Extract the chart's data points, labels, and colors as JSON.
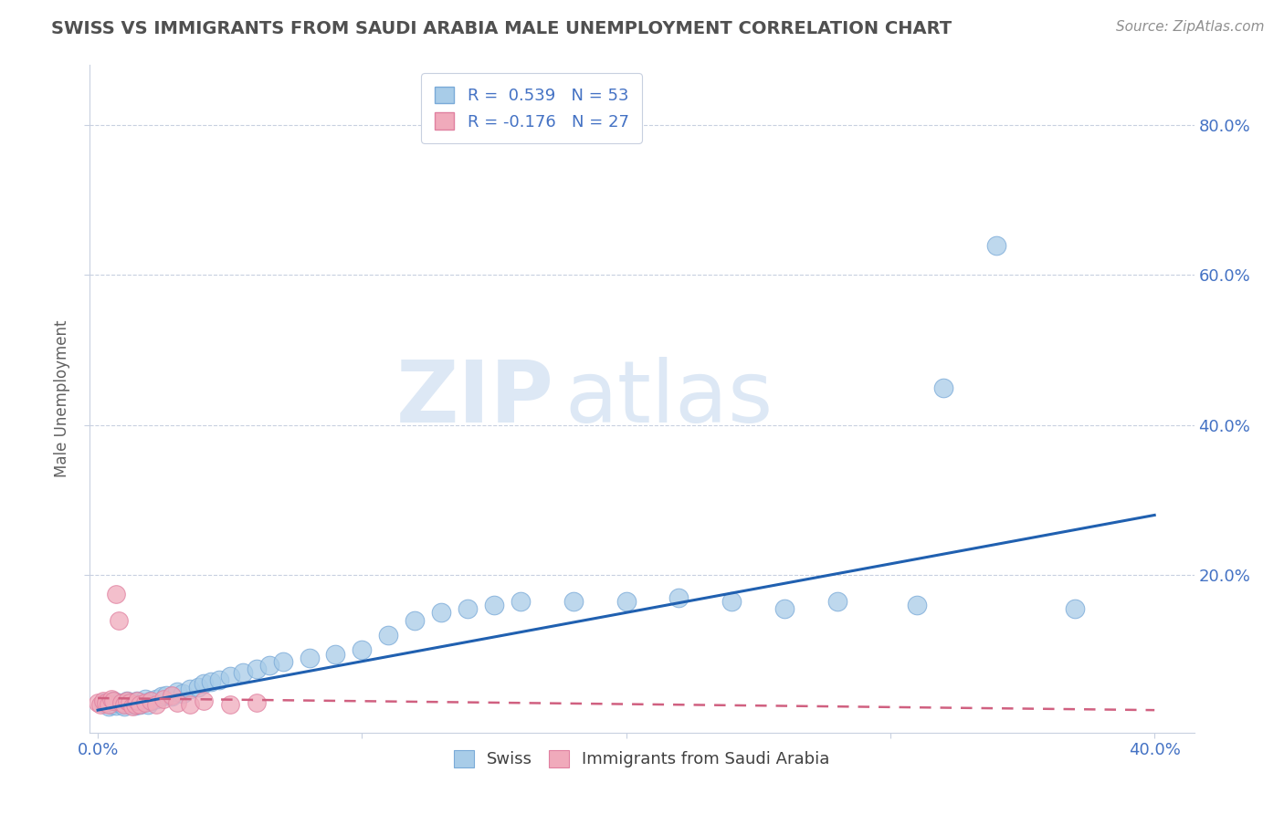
{
  "title": "SWISS VS IMMIGRANTS FROM SAUDI ARABIA MALE UNEMPLOYMENT CORRELATION CHART",
  "source": "Source: ZipAtlas.com",
  "ylabel": "Male Unemployment",
  "xlim": [
    -0.003,
    0.415
  ],
  "ylim": [
    -0.01,
    0.88
  ],
  "yticks": [
    0.2,
    0.4,
    0.6,
    0.8
  ],
  "ytick_labels": [
    "20.0%",
    "40.0%",
    "60.0%",
    "80.0%"
  ],
  "xticks": [
    0.0,
    0.1,
    0.2,
    0.3,
    0.4
  ],
  "xtick_labels": [
    "0.0%",
    "",
    "",
    "",
    "40.0%"
  ],
  "swiss_color": "#a8cce8",
  "immigrants_color": "#f0aabb",
  "trend_swiss_color": "#2060b0",
  "trend_immigrants_color": "#d06080",
  "legend_r1": "R =  0.539   N = 53",
  "legend_r2": "R = -0.176   N = 27",
  "swiss_x": [
    0.002,
    0.004,
    0.005,
    0.006,
    0.007,
    0.008,
    0.009,
    0.01,
    0.011,
    0.012,
    0.013,
    0.014,
    0.015,
    0.016,
    0.017,
    0.018,
    0.019,
    0.02,
    0.022,
    0.024,
    0.026,
    0.028,
    0.03,
    0.032,
    0.035,
    0.038,
    0.04,
    0.043,
    0.046,
    0.05,
    0.055,
    0.06,
    0.065,
    0.07,
    0.08,
    0.09,
    0.1,
    0.11,
    0.12,
    0.13,
    0.14,
    0.15,
    0.16,
    0.18,
    0.2,
    0.22,
    0.24,
    0.26,
    0.28,
    0.31,
    0.32,
    0.34,
    0.37
  ],
  "swiss_y": [
    0.03,
    0.025,
    0.028,
    0.032,
    0.026,
    0.03,
    0.028,
    0.025,
    0.032,
    0.028,
    0.03,
    0.026,
    0.032,
    0.028,
    0.03,
    0.035,
    0.028,
    0.032,
    0.035,
    0.038,
    0.04,
    0.038,
    0.045,
    0.042,
    0.048,
    0.05,
    0.055,
    0.058,
    0.06,
    0.065,
    0.07,
    0.075,
    0.08,
    0.085,
    0.09,
    0.095,
    0.1,
    0.12,
    0.14,
    0.15,
    0.155,
    0.16,
    0.165,
    0.165,
    0.165,
    0.17,
    0.165,
    0.155,
    0.165,
    0.16,
    0.45,
    0.64,
    0.155
  ],
  "immigrants_x": [
    0.0,
    0.001,
    0.002,
    0.003,
    0.004,
    0.005,
    0.006,
    0.007,
    0.008,
    0.009,
    0.01,
    0.011,
    0.012,
    0.013,
    0.014,
    0.015,
    0.016,
    0.018,
    0.02,
    0.022,
    0.025,
    0.028,
    0.03,
    0.035,
    0.04,
    0.05,
    0.06
  ],
  "immigrants_y": [
    0.03,
    0.028,
    0.032,
    0.03,
    0.028,
    0.035,
    0.032,
    0.175,
    0.14,
    0.03,
    0.028,
    0.032,
    0.03,
    0.025,
    0.028,
    0.032,
    0.028,
    0.03,
    0.032,
    0.028,
    0.035,
    0.04,
    0.03,
    0.028,
    0.032,
    0.028,
    0.03
  ],
  "watermark_zip": "ZIP",
  "watermark_atlas": "atlas",
  "background_color": "#ffffff",
  "grid_color": "#c8d0e0",
  "title_color": "#505050",
  "axis_color": "#4472c4",
  "tick_color": "#4472c4",
  "source_color": "#909090"
}
